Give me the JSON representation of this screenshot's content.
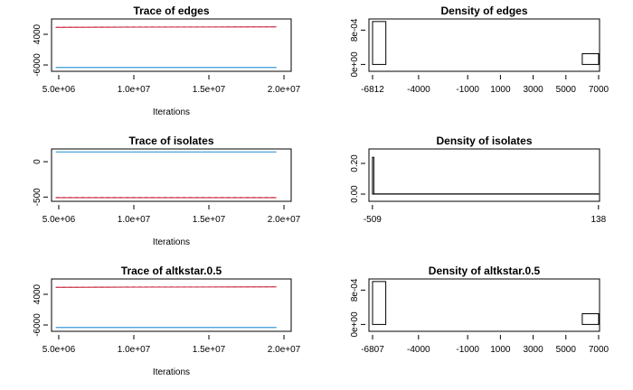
{
  "chart_data": [
    {
      "type": "line",
      "title": "Trace of edges",
      "xlabel": "Iterations",
      "x": [
        4800000,
        10000000,
        15000000,
        19500000
      ],
      "series": [
        {
          "color": "#3a9ad9",
          "values": [
            -6812,
            -6812,
            -6812,
            -6812
          ]
        },
        {
          "color": "#d0455a",
          "values": [
            6250,
            6330,
            6370,
            6420
          ]
        },
        {
          "color": "#d0455a",
          "dashed": true,
          "values": [
            6300,
            6390,
            6400,
            6460
          ]
        }
      ],
      "xlim": [
        4520000,
        20480000
      ],
      "ylim": [
        -8060,
        9000
      ],
      "xticks": [
        {
          "value": 5000000,
          "label": "5.0e+06"
        },
        {
          "value": 10000000,
          "label": "1.0e+07"
        },
        {
          "value": 15000000,
          "label": "1.5e+07"
        },
        {
          "value": 20000000,
          "label": "2.0e+07"
        }
      ],
      "yticks": [
        -6000,
        4000
      ]
    },
    {
      "type": "histogram",
      "title": "Density of edges",
      "color": "#ffffff",
      "bins": [
        -6812,
        -6000,
        -5000,
        -4000,
        -3000,
        -2000,
        -1000,
        0,
        1000,
        2000,
        3000,
        4000,
        5000,
        6000,
        7000
      ],
      "counts": [
        0.001,
        0,
        0,
        0,
        0,
        0,
        0,
        0,
        0,
        0,
        0,
        0,
        0,
        0.00025
      ],
      "xlim": [
        -7033,
        7055
      ],
      "ylim": [
        -0.00016,
        0.00106
      ],
      "xticks": [
        -6812,
        -4000,
        -1000,
        1000,
        3000,
        5000,
        7000
      ],
      "yticks": [
        {
          "value": 0,
          "label": "0e+00"
        },
        {
          "value": 0.0008,
          "label": "8e-04"
        }
      ]
    },
    {
      "type": "line",
      "title": "Trace of isolates",
      "xlabel": "Iterations",
      "x": [
        4800000,
        10000000,
        15000000,
        19500000
      ],
      "series": [
        {
          "color": "#3a9ad9",
          "values": [
            138,
            138,
            138,
            138
          ]
        },
        {
          "color": "#d0455a",
          "values": [
            -509,
            -509,
            -509,
            -509
          ]
        },
        {
          "color": "#d0455a",
          "dashed": true,
          "values": [
            -505,
            -506,
            -505,
            -506
          ]
        }
      ],
      "xlim": [
        4520000,
        20480000
      ],
      "ylim": [
        -560,
        180
      ],
      "xticks": [
        {
          "value": 5000000,
          "label": "5.0e+06"
        },
        {
          "value": 10000000,
          "label": "1.0e+07"
        },
        {
          "value": 15000000,
          "label": "1.5e+07"
        },
        {
          "value": 20000000,
          "label": "2.0e+07"
        }
      ],
      "yticks": [
        -500,
        0
      ]
    },
    {
      "type": "histogram",
      "title": "Density of isolates",
      "color": "#ffffff",
      "bins": [
        -509,
        -505,
        138
      ],
      "counts": [
        0.24,
        0.0015
      ],
      "xlim": [
        -519,
        141
      ],
      "ylim": [
        -0.047,
        0.294
      ],
      "xticks": [
        -509,
        138
      ],
      "yticks": [
        {
          "value": 0,
          "label": "0.00"
        },
        {
          "value": 0.2,
          "label": "0.20"
        }
      ]
    },
    {
      "type": "line",
      "title": "Trace of altkstar.0.5",
      "xlabel": "Iterations",
      "x": [
        4800000,
        10000000,
        15000000,
        19500000
      ],
      "series": [
        {
          "color": "#3a9ad9",
          "values": [
            -6807,
            -6807,
            -6807,
            -6807
          ]
        },
        {
          "color": "#d0455a",
          "values": [
            6250,
            6330,
            6370,
            6420
          ]
        },
        {
          "color": "#d0455a",
          "dashed": true,
          "values": [
            6300,
            6390,
            6400,
            6460
          ]
        }
      ],
      "xlim": [
        4520000,
        20480000
      ],
      "ylim": [
        -8060,
        9000
      ],
      "xticks": [
        {
          "value": 5000000,
          "label": "5.0e+06"
        },
        {
          "value": 10000000,
          "label": "1.0e+07"
        },
        {
          "value": 15000000,
          "label": "1.5e+07"
        },
        {
          "value": 20000000,
          "label": "2.0e+07"
        }
      ],
      "yticks": [
        -6000,
        4000
      ]
    },
    {
      "type": "histogram",
      "title": "Density of altkstar.0.5",
      "color": "#ffffff",
      "bins": [
        -6807,
        -6000,
        -5000,
        -4000,
        -3000,
        -2000,
        -1000,
        0,
        1000,
        2000,
        3000,
        4000,
        5000,
        6000,
        7000
      ],
      "counts": [
        0.001,
        0,
        0,
        0,
        0,
        0,
        0,
        0,
        0,
        0,
        0,
        0,
        0,
        0.00025
      ],
      "xlim": [
        -7028,
        7055
      ],
      "ylim": [
        -0.00016,
        0.00106
      ],
      "xticks": [
        -6807,
        -4000,
        -1000,
        1000,
        3000,
        5000,
        7000
      ],
      "yticks": [
        {
          "value": 0,
          "label": "0e+00"
        },
        {
          "value": 0.0008,
          "label": "8e-04"
        }
      ]
    }
  ]
}
